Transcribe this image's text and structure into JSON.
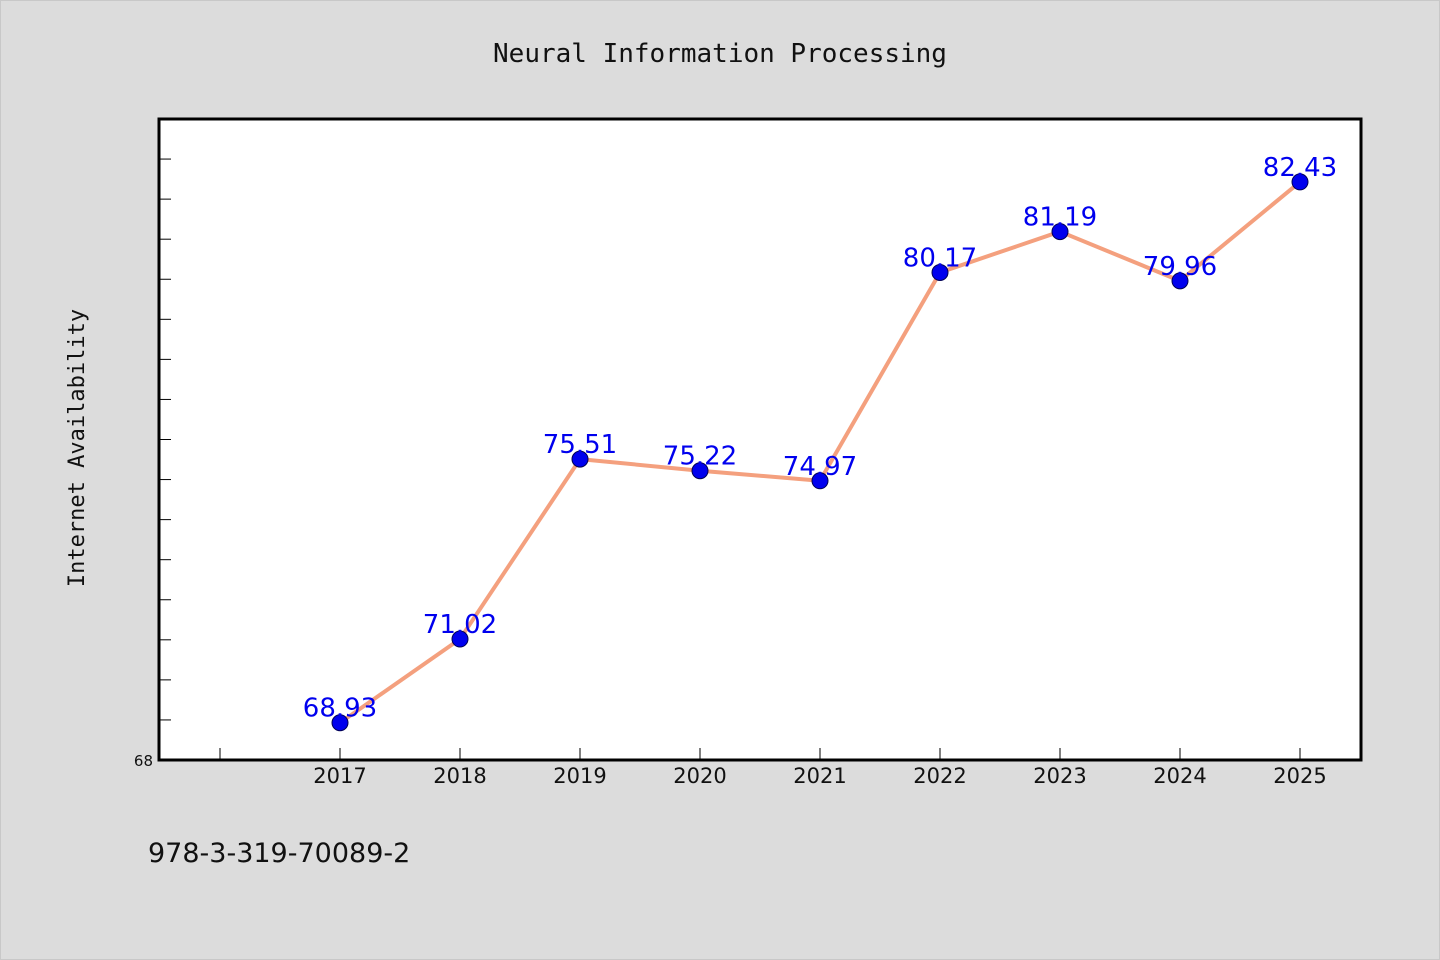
{
  "chart_data": {
    "type": "line",
    "title": "Neural Information Processing",
    "xlabel": "",
    "ylabel": "Internet Availability",
    "categories": [
      "2017",
      "2018",
      "2019",
      "2020",
      "2021",
      "2022",
      "2023",
      "2024",
      "2025"
    ],
    "series": [
      {
        "values": [
          68.93,
          71.02,
          75.51,
          75.22,
          74.97,
          80.17,
          81.19,
          79.96,
          82.43
        ]
      }
    ],
    "data_labels": [
      "68.93",
      "71.02",
      "75.51",
      "75.22",
      "74.97",
      "80.17",
      "81.19",
      "79.96",
      "82.43"
    ],
    "ylim": [
      68,
      84
    ],
    "y_tick_labels": [
      "68"
    ],
    "grid": false,
    "legend": "none",
    "colors": {
      "line": "#f4a07e",
      "marker": "#0000ee",
      "label": "#0000ee",
      "plot_bg": "#ffffff",
      "figure_bg": "#dcdcdc"
    }
  },
  "footer": {
    "text": "978-3-319-70089-2"
  }
}
